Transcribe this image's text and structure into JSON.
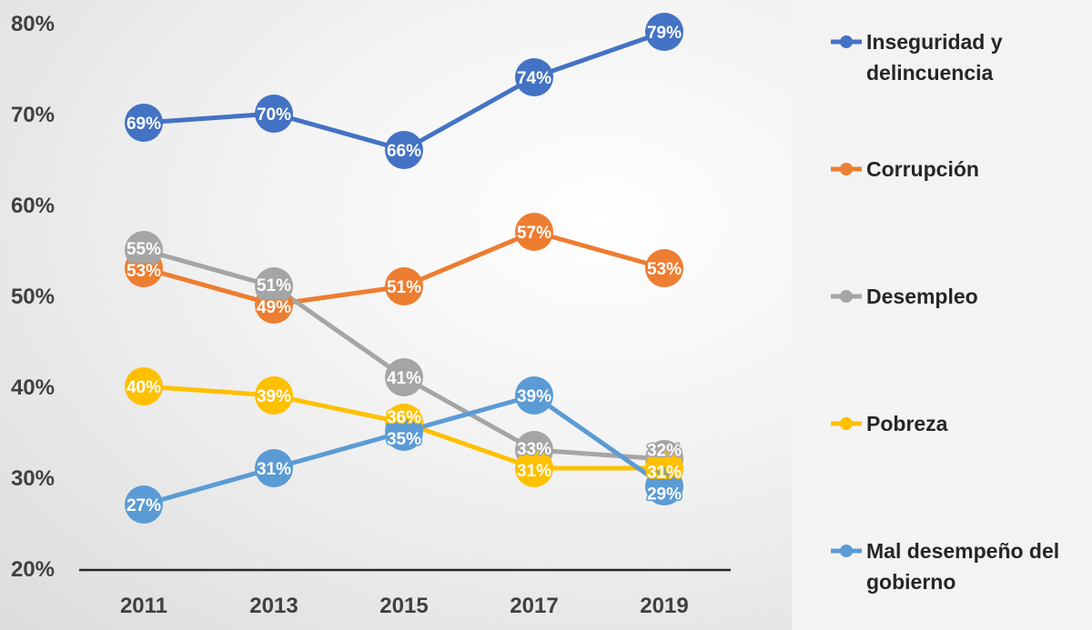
{
  "chart_data": {
    "type": "line",
    "title": "",
    "xlabel": "",
    "ylabel": "",
    "categories": [
      "2011",
      "2013",
      "2015",
      "2017",
      "2019"
    ],
    "ylim": [
      20,
      80
    ],
    "yticks": [
      "20%",
      "30%",
      "40%",
      "50%",
      "60%",
      "70%",
      "80%"
    ],
    "grid": false,
    "legend_position": "right",
    "series": [
      {
        "name": "Inseguridad y delincuencia",
        "legend_lines": [
          "Inseguridad y",
          "delincuencia"
        ],
        "color": "#4472C4",
        "values": [
          69,
          70,
          66,
          74,
          79
        ]
      },
      {
        "name": "Corrupción",
        "legend_lines": [
          "Corrupción"
        ],
        "color": "#ED7D31",
        "values": [
          53,
          49,
          51,
          57,
          53
        ]
      },
      {
        "name": "Desempleo",
        "legend_lines": [
          "Desempleo"
        ],
        "color": "#A5A5A5",
        "values": [
          55,
          51,
          41,
          33,
          32
        ]
      },
      {
        "name": "Pobreza",
        "legend_lines": [
          "Pobreza"
        ],
        "color": "#FFC000",
        "values": [
          40,
          39,
          36,
          31,
          31
        ]
      },
      {
        "name": "Mal desempeño del gobierno",
        "legend_lines": [
          "Mal desempeño del",
          "gobierno"
        ],
        "color": "#5B9BD5",
        "values": [
          27,
          31,
          35,
          39,
          29
        ]
      }
    ]
  }
}
